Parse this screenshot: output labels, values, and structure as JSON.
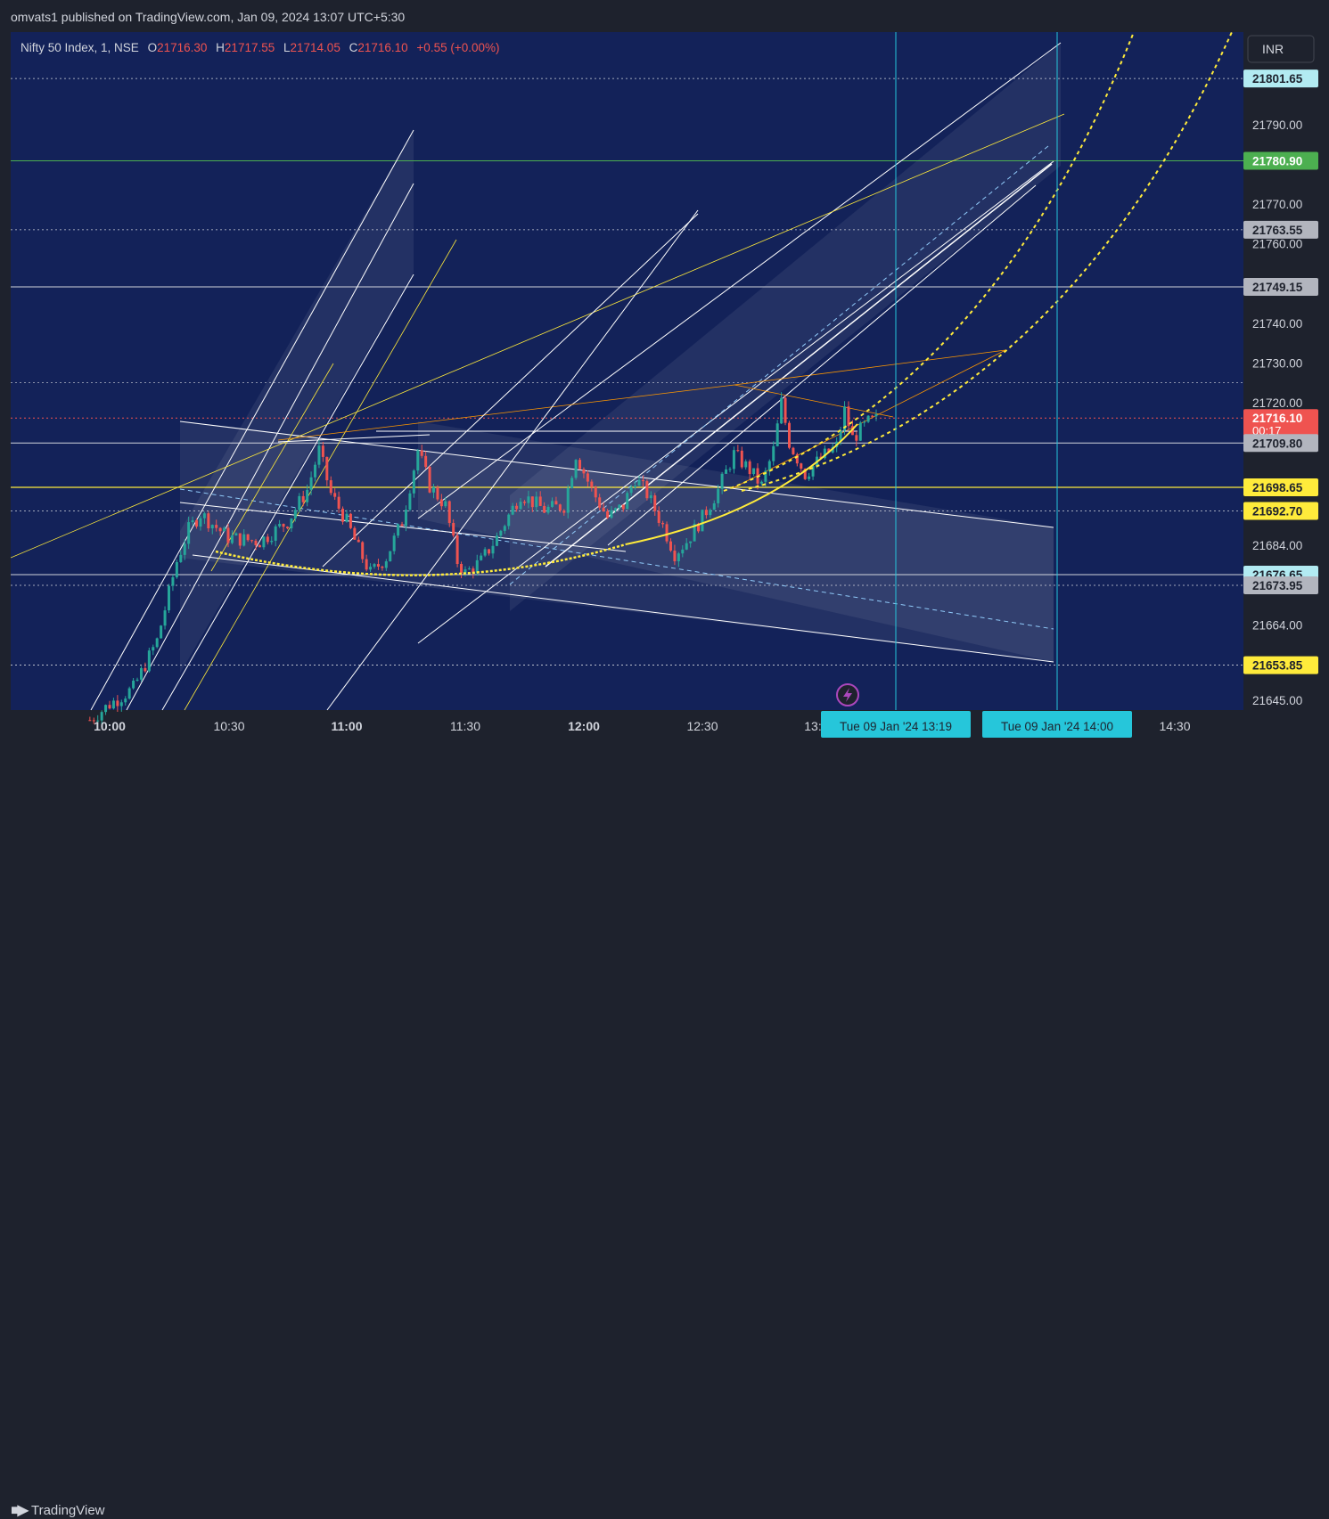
{
  "publisher_line": "omvats1 published on TradingView.com, Jan 09, 2024 13:07 UTC+5:30",
  "footer_brand": "TradingView",
  "currency_button": "INR",
  "colors": {
    "background": "#132259",
    "up_candle": "#26a69a",
    "down_candle": "#ef5350",
    "white_lines": "#ffffff",
    "yellow_lines": "#ffeb3b",
    "orange_lines": "#ff9800",
    "green_level": "#4caf50",
    "cyan_marker": "#22ab94"
  },
  "legend": {
    "symbol": "Nifty 50 Index, 1, NSE",
    "o_label": "O",
    "o_value": "21716.30",
    "h_label": "H",
    "h_value": "21717.55",
    "l_label": "L",
    "l_value": "21714.05",
    "c_label": "C",
    "c_value": "21716.10",
    "change": "+0.55 (+0.00%)"
  },
  "chart_data": {
    "type": "candlestick",
    "title": "Nifty 50 Index, 1, NSE",
    "xlabel": "",
    "ylabel": "",
    "y_ticks": [
      "21790.00",
      "21770.00",
      "21760.00",
      "21740.00",
      "21730.00",
      "21720.00",
      "21684.00",
      "21664.00",
      "21645.00"
    ],
    "x_ticks": [
      "10:00",
      "10:30",
      "11:00",
      "11:30",
      "12:00",
      "12:30",
      "13:",
      "14:30"
    ],
    "price_labels": [
      {
        "value": "21801.65",
        "style": "light"
      },
      {
        "value": "21780.90",
        "style": "green"
      },
      {
        "value": "21763.55",
        "style": "gray"
      },
      {
        "value": "21749.15",
        "style": "gray"
      },
      {
        "value": "21716.10",
        "style": "red",
        "countdown": "00:17"
      },
      {
        "value": "21709.80",
        "style": "gray"
      },
      {
        "value": "21698.65",
        "style": "yellow"
      },
      {
        "value": "21692.70",
        "style": "yellow"
      },
      {
        "value": "21676.65",
        "style": "light"
      },
      {
        "value": "21673.95",
        "style": "gray"
      },
      {
        "value": "21653.85",
        "style": "yellow"
      }
    ],
    "time_markers": [
      "Tue 09 Jan '24   13:19",
      "Tue 09 Jan '24   14:00"
    ],
    "horizontal_levels": [
      21801.65,
      21780.9,
      21763.55,
      21749.15,
      21725.0,
      21716.1,
      21709.8,
      21698.65,
      21692.7,
      21676.65,
      21673.95,
      21653.85
    ],
    "last_price": 21716.1,
    "price_path": [
      {
        "t": "09:55",
        "p": 21640
      },
      {
        "t": "10:00",
        "p": 21644
      },
      {
        "t": "10:06",
        "p": 21648
      },
      {
        "t": "10:12",
        "p": 21660
      },
      {
        "t": "10:17",
        "p": 21680
      },
      {
        "t": "10:20",
        "p": 21688
      },
      {
        "t": "10:23",
        "p": 21692
      },
      {
        "t": "10:30",
        "p": 21686
      },
      {
        "t": "10:38",
        "p": 21685
      },
      {
        "t": "10:45",
        "p": 21690
      },
      {
        "t": "10:50",
        "p": 21698
      },
      {
        "t": "10:53",
        "p": 21708
      },
      {
        "t": "10:56",
        "p": 21697
      },
      {
        "t": "11:00",
        "p": 21690
      },
      {
        "t": "11:03",
        "p": 21683
      },
      {
        "t": "11:06",
        "p": 21677
      },
      {
        "t": "11:10",
        "p": 21681
      },
      {
        "t": "11:14",
        "p": 21690
      },
      {
        "t": "11:18",
        "p": 21708
      },
      {
        "t": "11:21",
        "p": 21699
      },
      {
        "t": "11:25",
        "p": 21694
      },
      {
        "t": "11:28",
        "p": 21680
      },
      {
        "t": "11:30",
        "p": 21677
      },
      {
        "t": "11:34",
        "p": 21680
      },
      {
        "t": "11:38",
        "p": 21686
      },
      {
        "t": "11:44",
        "p": 21697
      },
      {
        "t": "11:50",
        "p": 21693
      },
      {
        "t": "11:55",
        "p": 21694
      },
      {
        "t": "11:58",
        "p": 21707
      },
      {
        "t": "12:02",
        "p": 21698
      },
      {
        "t": "12:06",
        "p": 21691
      },
      {
        "t": "12:10",
        "p": 21694
      },
      {
        "t": "12:13",
        "p": 21701
      },
      {
        "t": "12:16",
        "p": 21697
      },
      {
        "t": "12:20",
        "p": 21689
      },
      {
        "t": "12:23",
        "p": 21682
      },
      {
        "t": "12:26",
        "p": 21685
      },
      {
        "t": "12:30",
        "p": 21691
      },
      {
        "t": "12:34",
        "p": 21698
      },
      {
        "t": "12:38",
        "p": 21707
      },
      {
        "t": "12:42",
        "p": 21703
      },
      {
        "t": "12:45",
        "p": 21699
      },
      {
        "t": "12:48",
        "p": 21708
      },
      {
        "t": "12:50",
        "p": 21720
      },
      {
        "t": "12:52",
        "p": 21710
      },
      {
        "t": "12:56",
        "p": 21702
      },
      {
        "t": "13:00",
        "p": 21706
      },
      {
        "t": "13:04",
        "p": 21709
      },
      {
        "t": "13:06",
        "p": 21718
      },
      {
        "t": "13:08",
        "p": 21711
      },
      {
        "t": "13:12",
        "p": 21715
      },
      {
        "t": "13:15",
        "p": 21716
      }
    ]
  }
}
